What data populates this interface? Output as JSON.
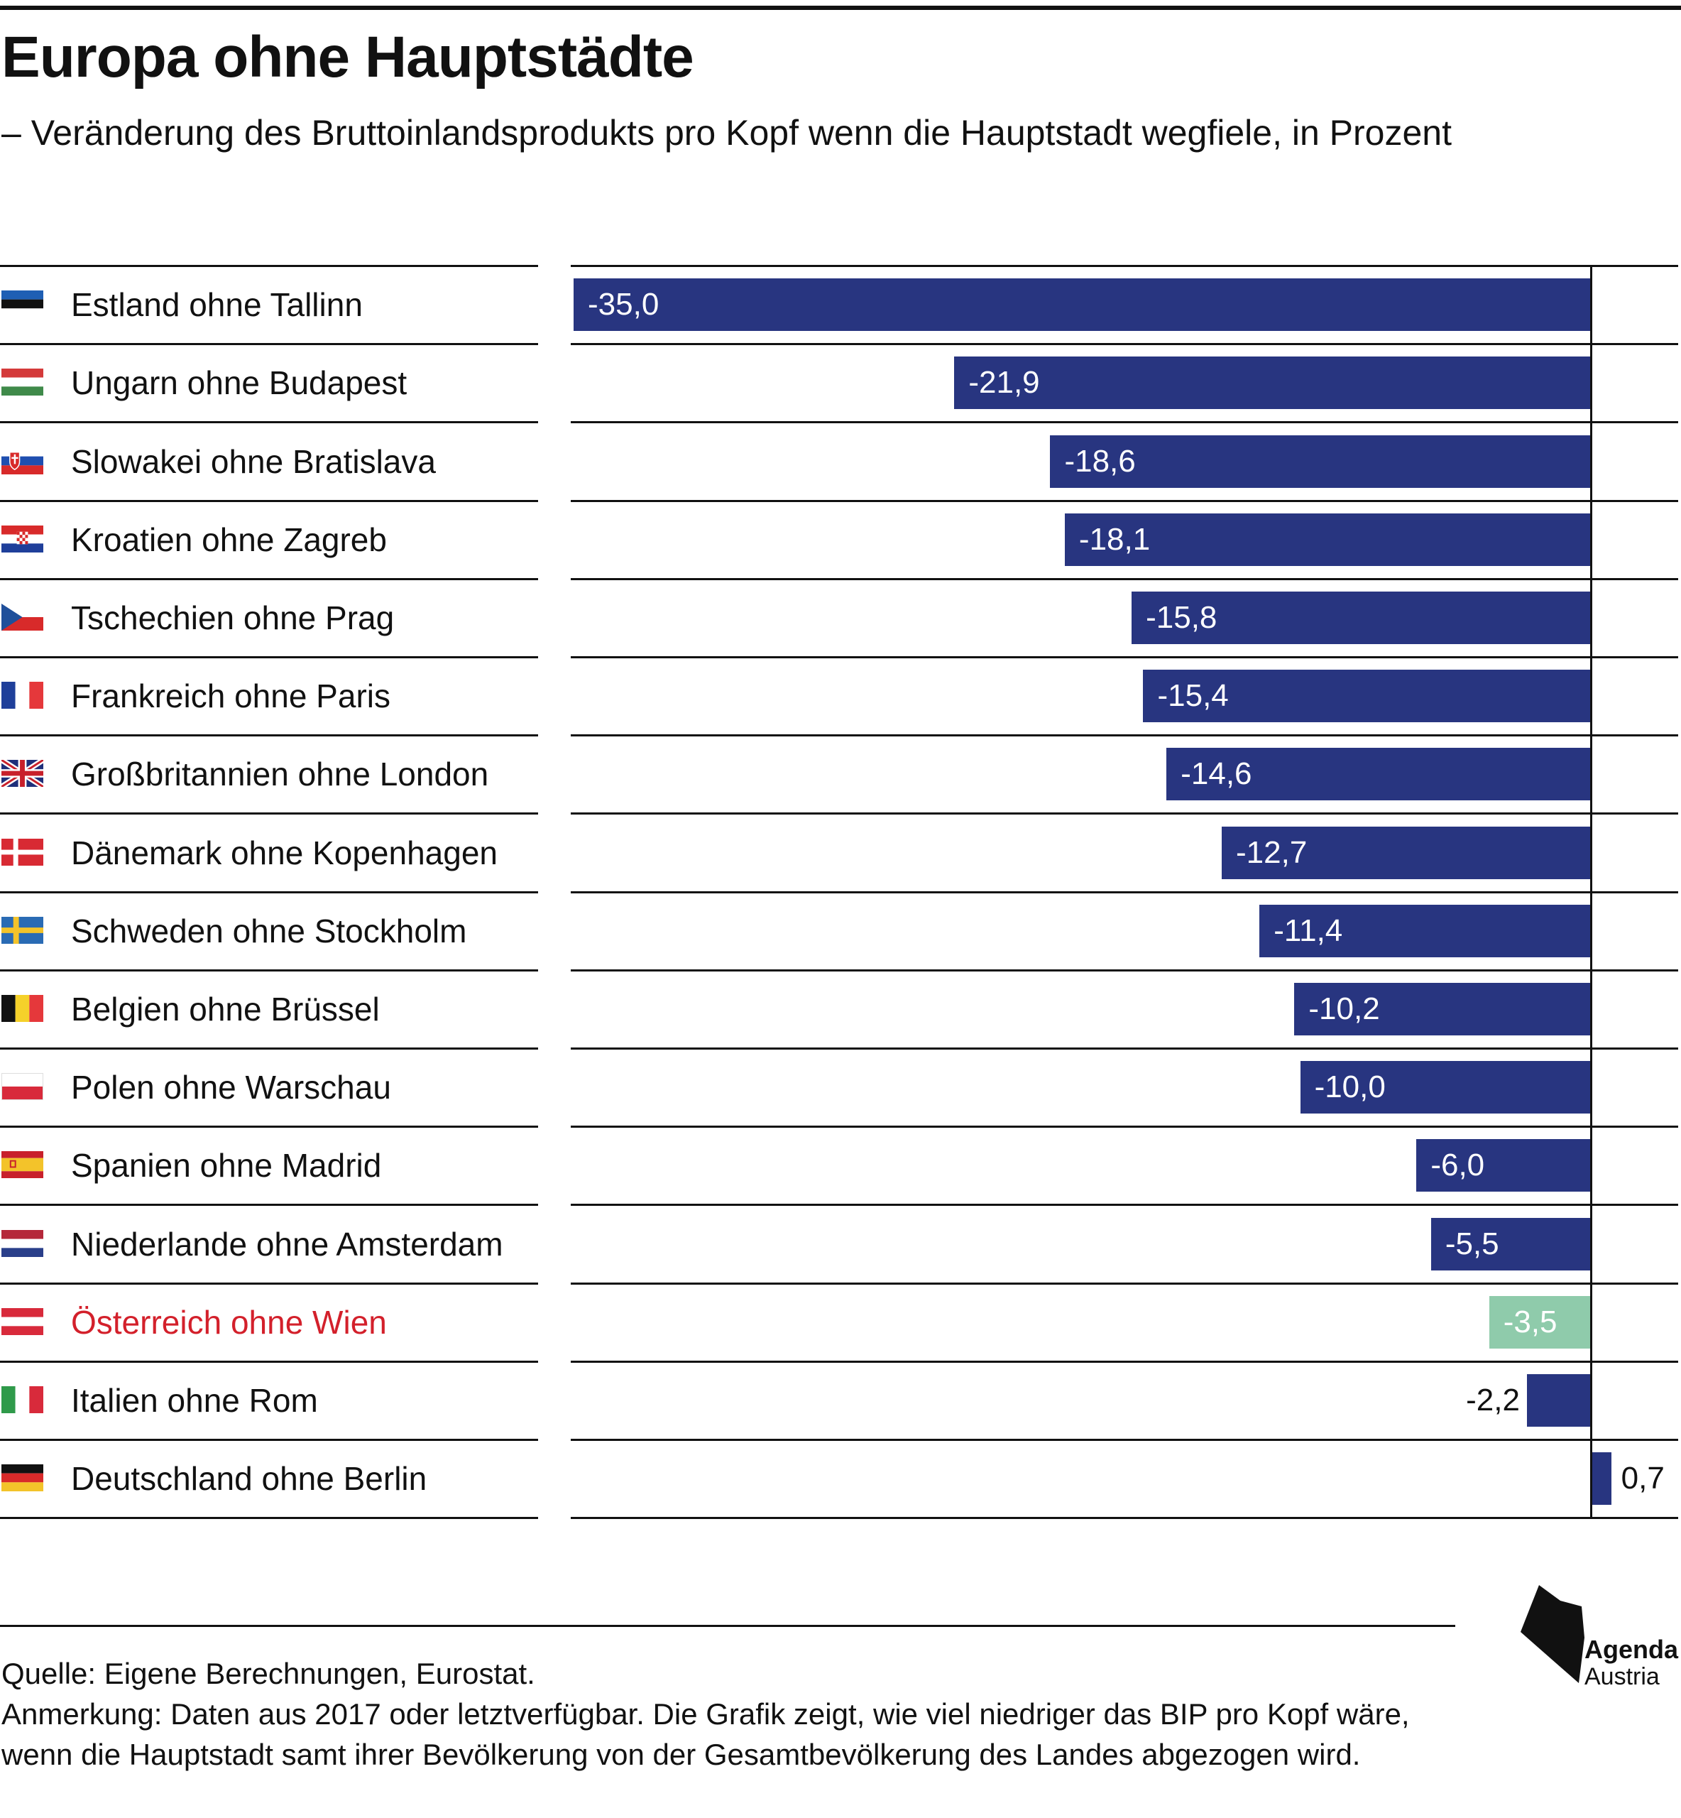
{
  "title": "Europa ohne Hauptstädte",
  "subtitle": "– Veränderung des Bruttoinlandsprodukts pro Kopf wenn die Hauptstadt wegfiele, in Prozent",
  "colors": {
    "bar": "#283580",
    "highlight_bar": "#8fcbab",
    "highlight_text": "#d3202b",
    "text": "#111111"
  },
  "chart_data": {
    "type": "bar",
    "orientation": "horizontal",
    "categories": [
      "Estland ohne Tallinn",
      "Ungarn ohne Budapest",
      "Slowakei ohne Bratislava",
      "Kroatien ohne Zagreb",
      "Tschechien ohne Prag",
      "Frankreich ohne Paris",
      "Großbritannien ohne London",
      "Dänemark ohne Kopenhagen",
      "Schweden ohne Stockholm",
      "Belgien ohne Brüssel",
      "Polen ohne Warschau",
      "Spanien ohne Madrid",
      "Niederlande ohne Amsterdam",
      "Österreich ohne Wien",
      "Italien ohne Rom",
      "Deutschland ohne Berlin"
    ],
    "values": [
      -35.0,
      -21.9,
      -18.6,
      -18.1,
      -15.8,
      -15.4,
      -14.6,
      -12.7,
      -11.4,
      -10.2,
      -10.0,
      -6.0,
      -5.5,
      -3.5,
      -2.2,
      0.7
    ],
    "value_labels": [
      "-35,0",
      "-21,9",
      "-18,6",
      "-18,1",
      "-15,8",
      "-15,4",
      "-14,6",
      "-12,7",
      "-11,4",
      "-10,2",
      "-10,0",
      "-6,0",
      "-5,5",
      "-3,5",
      "-2,2",
      "0,7"
    ],
    "flags": [
      "estonia-flag",
      "hungary-flag",
      "slovakia-flag",
      "croatia-flag",
      "czechia-flag",
      "france-flag",
      "uk-flag",
      "denmark-flag",
      "sweden-flag",
      "belgium-flag",
      "poland-flag",
      "spain-flag",
      "netherlands-flag",
      "austria-flag",
      "italy-flag",
      "germany-flag"
    ],
    "highlight": "Österreich ohne Wien",
    "xlim": [
      -35,
      0.7
    ],
    "grid": false,
    "legend": "none"
  },
  "footer": {
    "source": "Quelle: Eigene Berechnungen, Eurostat.",
    "note": "Anmerkung: Daten aus 2017 oder letztverfügbar. Die Grafik zeigt, wie viel niedriger das BIP pro Kopf wäre, wenn die Hauptstadt samt ihrer Bevölkerung von der Gesamtbevölkerung des Landes abgezogen wird."
  },
  "logo": {
    "line1": "Agenda",
    "line2": "Austria"
  }
}
